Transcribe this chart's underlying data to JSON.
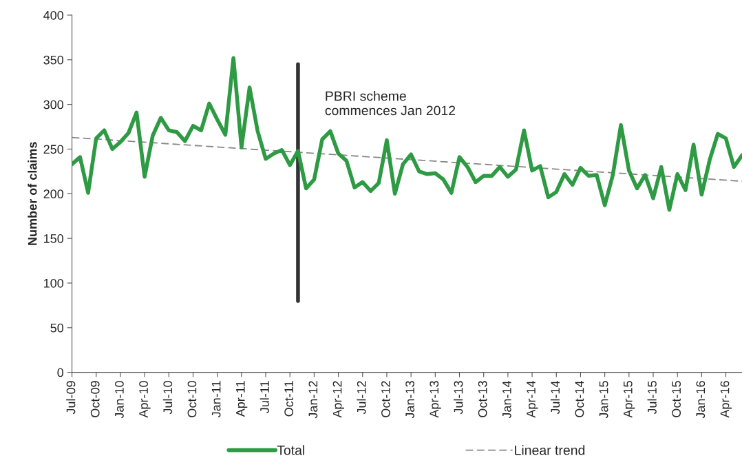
{
  "chart_data": {
    "type": "line",
    "ylabel": "Number of claims",
    "ylim": [
      0,
      400
    ],
    "yticks": [
      0,
      50,
      100,
      150,
      200,
      250,
      300,
      350,
      400
    ],
    "xlim": [
      "2009-07",
      "2016-06"
    ],
    "xticks": [
      {
        "value": "2009-07",
        "label": "Jul-09"
      },
      {
        "value": "2009-10",
        "label": "Oct-09"
      },
      {
        "value": "2010-01",
        "label": "Jan-10"
      },
      {
        "value": "2010-04",
        "label": "Apr-10"
      },
      {
        "value": "2010-07",
        "label": "Jul-10"
      },
      {
        "value": "2010-10",
        "label": "Oct-10"
      },
      {
        "value": "2011-01",
        "label": "Jan-11"
      },
      {
        "value": "2011-04",
        "label": "Apr-11"
      },
      {
        "value": "2011-07",
        "label": "Jul-11"
      },
      {
        "value": "2011-10",
        "label": "Oct-11"
      },
      {
        "value": "2012-01",
        "label": "Jan-12"
      },
      {
        "value": "2012-04",
        "label": "Apr-12"
      },
      {
        "value": "2012-07",
        "label": "Jul-12"
      },
      {
        "value": "2012-10",
        "label": "Oct-12"
      },
      {
        "value": "2013-01",
        "label": "Jan-13"
      },
      {
        "value": "2013-04",
        "label": "Apr-13"
      },
      {
        "value": "2013-07",
        "label": "Jul-13"
      },
      {
        "value": "2013-10",
        "label": "Oct-13"
      },
      {
        "value": "2014-01",
        "label": "Jan-14"
      },
      {
        "value": "2014-04",
        "label": "Apr-14"
      },
      {
        "value": "2014-07",
        "label": "Jul-14"
      },
      {
        "value": "2014-10",
        "label": "Oct-14"
      },
      {
        "value": "2015-01",
        "label": "Jan-15"
      },
      {
        "value": "2015-04",
        "label": "Apr-15"
      },
      {
        "value": "2015-07",
        "label": "Jul-15"
      },
      {
        "value": "2015-10",
        "label": "Oct-15"
      },
      {
        "value": "2016-01",
        "label": "Jan-16"
      },
      {
        "value": "2016-04",
        "label": "Apr-16"
      }
    ],
    "x": [
      "2009-07",
      "2009-08",
      "2009-09",
      "2009-10",
      "2009-11",
      "2009-12",
      "2010-01",
      "2010-02",
      "2010-03",
      "2010-04",
      "2010-05",
      "2010-06",
      "2010-07",
      "2010-08",
      "2010-09",
      "2010-10",
      "2010-11",
      "2010-12",
      "2011-01",
      "2011-02",
      "2011-03",
      "2011-04",
      "2011-05",
      "2011-06",
      "2011-07",
      "2011-08",
      "2011-09",
      "2011-10",
      "2011-11",
      "2011-12",
      "2012-01",
      "2012-02",
      "2012-03",
      "2012-04",
      "2012-05",
      "2012-06",
      "2012-07",
      "2012-08",
      "2012-09",
      "2012-10",
      "2012-11",
      "2012-12",
      "2013-01",
      "2013-02",
      "2013-03",
      "2013-04",
      "2013-05",
      "2013-06",
      "2013-07",
      "2013-08",
      "2013-09",
      "2013-10",
      "2013-11",
      "2013-12",
      "2014-01",
      "2014-02",
      "2014-03",
      "2014-04",
      "2014-05",
      "2014-06",
      "2014-07",
      "2014-08",
      "2014-09",
      "2014-10",
      "2014-11",
      "2014-12",
      "2015-01",
      "2015-02",
      "2015-03",
      "2015-04",
      "2015-05",
      "2015-06",
      "2015-07",
      "2015-08",
      "2015-09",
      "2015-10",
      "2015-11",
      "2015-12",
      "2016-01",
      "2016-02",
      "2016-03",
      "2016-04",
      "2016-05",
      "2016-06"
    ],
    "series": [
      {
        "name": "Total",
        "color": "#2e9b44",
        "line_style": "solid",
        "values": [
          233,
          241,
          201,
          262,
          271,
          250,
          258,
          268,
          291,
          219,
          265,
          285,
          271,
          269,
          259,
          276,
          271,
          301,
          283,
          266,
          352,
          252,
          319,
          270,
          239,
          245,
          249,
          232,
          248,
          206,
          216,
          261,
          270,
          245,
          237,
          207,
          213,
          203,
          212,
          260,
          200,
          233,
          244,
          225,
          222,
          223,
          216,
          201,
          241,
          230,
          213,
          220,
          220,
          230,
          219,
          227,
          271,
          226,
          231,
          196,
          202,
          222,
          210,
          229,
          220,
          221,
          187,
          221,
          277,
          226,
          206,
          221,
          195,
          230,
          182,
          222,
          204,
          255,
          199,
          238,
          267,
          262,
          230,
          243
        ]
      },
      {
        "name": "Linear trend",
        "color": "#888888",
        "line_style": "dashed",
        "x": [
          "2009-07",
          "2016-06"
        ],
        "values": [
          263,
          214
        ]
      },
      {
        "color": "#333333",
        "line_style": "solid",
        "x": [
          "2011-11",
          "2011-11"
        ],
        "values": [
          80,
          345
        ]
      }
    ],
    "annotations": [
      {
        "text": "PBRI scheme\ncommences Jan 2012",
        "x": "2011-11",
        "y": 300
      }
    ],
    "grid": false,
    "legend": "bottom",
    "marker": "none"
  }
}
